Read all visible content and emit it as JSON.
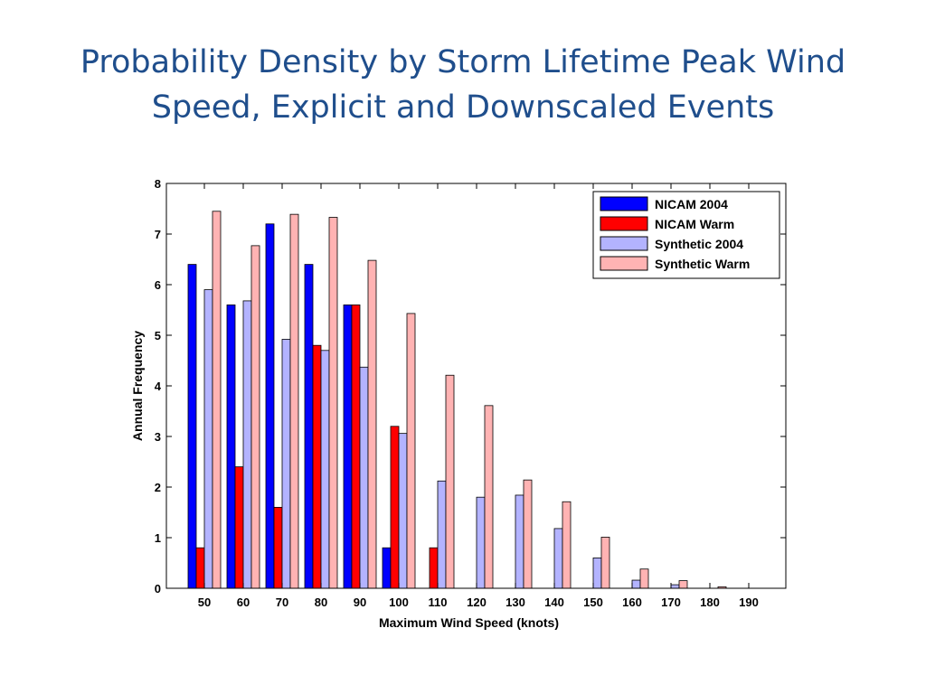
{
  "slide": {
    "title_line1": "Probability Density by Storm Lifetime Peak Wind",
    "title_line2": "Speed, Explicit and Downscaled Events",
    "title_color": "#1f4e8c"
  },
  "chart_data": {
    "type": "bar",
    "title": "",
    "xlabel": "Maximum Wind Speed (knots)",
    "ylabel": "Annual Frequency",
    "categories": [
      "50",
      "60",
      "70",
      "80",
      "90",
      "100",
      "110",
      "120",
      "130",
      "140",
      "150",
      "160",
      "170",
      "180",
      "190"
    ],
    "ylim": [
      0,
      8
    ],
    "yticks": [
      "0",
      "1",
      "2",
      "3",
      "4",
      "5",
      "6",
      "7",
      "8"
    ],
    "grid": false,
    "legend_position": "top-right",
    "series": [
      {
        "name": "NICAM 2004",
        "color": "#0000ff",
        "values": [
          6.4,
          5.6,
          7.2,
          6.4,
          5.6,
          0.8,
          0,
          0,
          0,
          0,
          0,
          0,
          0,
          0,
          0
        ]
      },
      {
        "name": "NICAM Warm",
        "color": "#ff0000",
        "values": [
          0.8,
          2.4,
          1.6,
          4.8,
          5.6,
          3.2,
          0.8,
          0,
          0,
          0,
          0,
          0,
          0,
          0,
          0
        ]
      },
      {
        "name": "Synthetic 2004",
        "color": "#b3b3ff",
        "values": [
          5.9,
          5.68,
          4.92,
          4.7,
          4.37,
          3.06,
          2.12,
          1.8,
          1.84,
          1.18,
          0.6,
          0.16,
          0.07,
          0,
          0
        ]
      },
      {
        "name": "Synthetic Warm",
        "color": "#ffb3b3",
        "values": [
          7.45,
          6.77,
          7.39,
          7.33,
          6.48,
          5.43,
          4.21,
          3.61,
          2.14,
          1.71,
          1.01,
          0.38,
          0.15,
          0.03,
          0
        ]
      }
    ]
  }
}
